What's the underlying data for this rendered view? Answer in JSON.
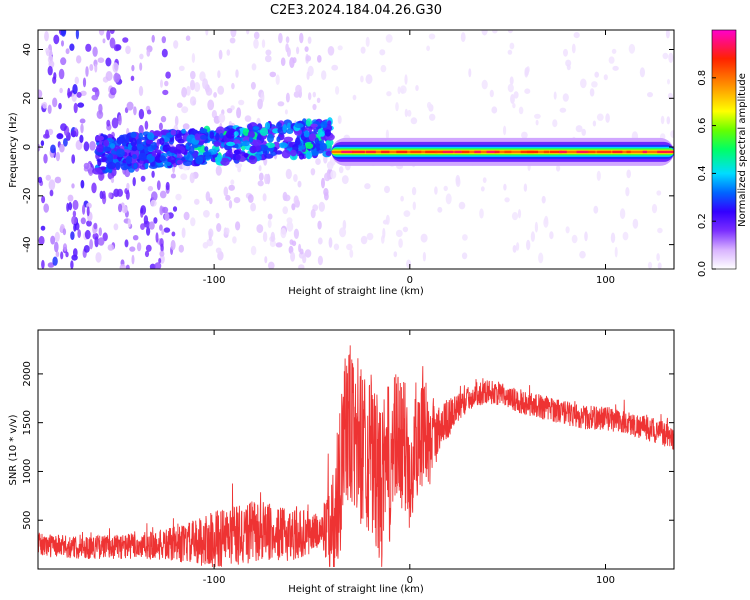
{
  "title": "C2E3.2024.184.04.26.G30",
  "chart_data": [
    {
      "type": "heatmap",
      "xlabel": "Height of straight line (km)",
      "ylabel": "Frequency (Hz)",
      "xlim": [
        -190,
        135
      ],
      "ylim": [
        -50,
        48
      ],
      "x_ticks": [
        -100,
        0,
        100
      ],
      "y_ticks": [
        -40,
        -20,
        0,
        20,
        40
      ],
      "grid": false,
      "colorbar": {
        "label": "Normalized spectral amplitude",
        "range": [
          0.0,
          1.0
        ],
        "ticks": [
          0.0,
          0.2,
          0.4,
          0.6,
          0.8
        ],
        "colormap": [
          "#ffffff",
          "#d9b3ff",
          "#7b2fff",
          "#3300ff",
          "#0066ff",
          "#00ddff",
          "#00ff66",
          "#66ff00",
          "#ffff00",
          "#ff9900",
          "#ff2200",
          "#ff00cc"
        ]
      },
      "features": {
        "noise_region_x": [
          -190,
          -120
        ],
        "dispersed_band_x": [
          -160,
          -40
        ],
        "dispersed_band_freq": [
          -8,
          14
        ],
        "line_freq_hz": -2,
        "line_start_x": -40,
        "line_peak_amplitude": 0.9
      }
    },
    {
      "type": "line",
      "xlabel": "Height of straight line (km)",
      "ylabel": "SNR (10 * v/v)",
      "xlim": [
        -190,
        135
      ],
      "ylim": [
        0,
        2450
      ],
      "x_ticks": [
        -100,
        0,
        100
      ],
      "y_ticks": [
        500,
        1000,
        1500,
        2000
      ],
      "grid": false,
      "series": [
        {
          "color": "#ee3333",
          "x": [
            -190,
            -170,
            -150,
            -130,
            -115,
            -100,
            -90,
            -80,
            -70,
            -60,
            -50,
            -45,
            -38,
            -35,
            -33,
            -30,
            -25,
            -20,
            -15,
            -10,
            -5,
            0,
            5,
            10,
            15,
            20,
            25,
            30,
            35,
            40,
            45,
            50,
            60,
            70,
            80,
            90,
            100,
            110,
            120,
            130,
            135
          ],
          "y": [
            250,
            220,
            230,
            240,
            260,
            300,
            330,
            380,
            350,
            360,
            370,
            400,
            500,
            1200,
            1500,
            1400,
            1300,
            1200,
            800,
            1100,
            1350,
            1100,
            1450,
            1250,
            1450,
            1550,
            1650,
            1750,
            1800,
            1820,
            1800,
            1750,
            1700,
            1650,
            1600,
            1550,
            1550,
            1500,
            1450,
            1380,
            1300
          ],
          "spread": [
            250,
            230,
            260,
            300,
            400,
            600,
            650,
            650,
            550,
            550,
            450,
            350,
            1400,
            1900,
            1900,
            1800,
            1700,
            1700,
            1700,
            1700,
            1400,
            1500,
            1200,
            900,
            500,
            400,
            300,
            250,
            250,
            250,
            250,
            250,
            250,
            250,
            250,
            250,
            250,
            250,
            250,
            250,
            250
          ]
        }
      ]
    }
  ]
}
